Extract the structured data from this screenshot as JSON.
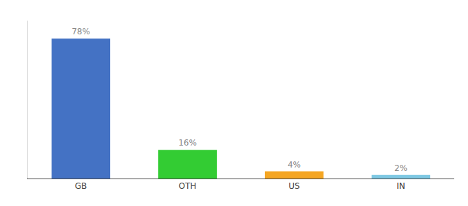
{
  "chart_data": {
    "type": "bar",
    "categories": [
      "GB",
      "OTH",
      "US",
      "IN"
    ],
    "values": [
      78,
      16,
      4,
      2
    ],
    "value_labels": [
      "78%",
      "16%",
      "4%",
      "2%"
    ],
    "colors": [
      "#4472c4",
      "#33cc33",
      "#f5a623",
      "#7ec8e3"
    ],
    "ylim": [
      0,
      88
    ],
    "data_labels": true,
    "tick_labels": "x",
    "grid": false
  }
}
